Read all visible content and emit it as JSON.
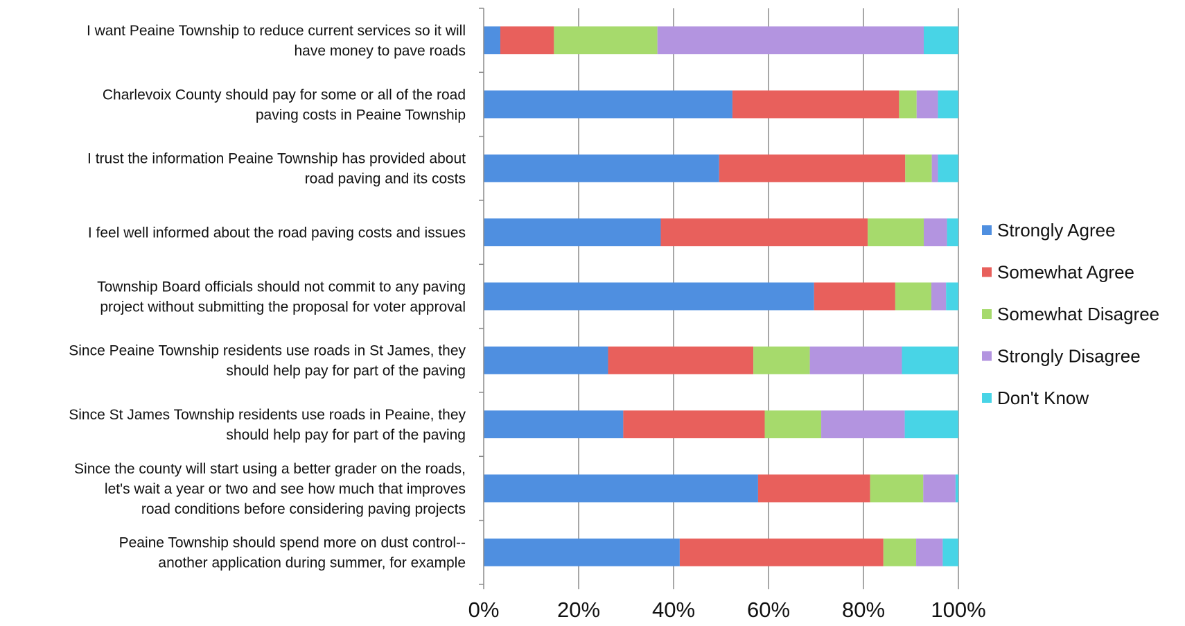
{
  "chart_data": {
    "type": "bar",
    "orientation": "horizontal",
    "stacked": "percent",
    "categories": [
      [
        "I want Peaine Township to reduce current services so it will",
        "have money to pave roads"
      ],
      [
        "Charlevoix County should pay for some or all of the road",
        "paving costs in Peaine Township"
      ],
      [
        "I trust the information Peaine Township has provided about",
        "road paving and its costs"
      ],
      [
        "I feel well informed about the road paving costs and issues"
      ],
      [
        "Township Board officials should not commit to any paving",
        "project without submitting the proposal for voter approval"
      ],
      [
        "Since Peaine Township residents use roads in St James, they",
        "should help pay for part of the paving"
      ],
      [
        "Since St James Township residents use roads in Peaine, they",
        "should help pay for part of the paving"
      ],
      [
        "Since the county will start using a better grader on the roads,",
        "let's wait a year or two and see how much that improves",
        "road conditions before considering paving projects"
      ],
      [
        "Peaine Township should spend more on dust control--",
        "another application during summer, for example"
      ]
    ],
    "series": [
      {
        "name": "Strongly Agree",
        "color": "#4F8FE0",
        "values": [
          3.5,
          52.4,
          49.6,
          37.3,
          69.6,
          26.2,
          29.4,
          57.8,
          41.3
        ]
      },
      {
        "name": "Somewhat Agree",
        "color": "#E8605C",
        "values": [
          11.3,
          35.1,
          39.2,
          43.6,
          17.1,
          30.6,
          29.8,
          23.6,
          42.9
        ]
      },
      {
        "name": "Somewhat Disagree",
        "color": "#A6DA6C",
        "values": [
          21.8,
          3.7,
          5.6,
          11.8,
          7.6,
          11.9,
          11.9,
          11.2,
          6.9
        ]
      },
      {
        "name": "Strongly Disagree",
        "color": "#B394E0",
        "values": [
          56.1,
          4.5,
          1.3,
          4.9,
          3.1,
          19.4,
          17.6,
          6.8,
          5.6
        ]
      },
      {
        "name": "Don't Know",
        "color": "#48D4E6",
        "values": [
          7.3,
          4.3,
          4.3,
          2.4,
          2.6,
          11.9,
          11.3,
          0.6,
          3.3
        ]
      }
    ],
    "x_ticks": [
      "0%",
      "20%",
      "40%",
      "60%",
      "80%",
      "100%"
    ],
    "xlim": [
      0,
      100
    ],
    "grid": "vertical",
    "legend_position": "right"
  }
}
